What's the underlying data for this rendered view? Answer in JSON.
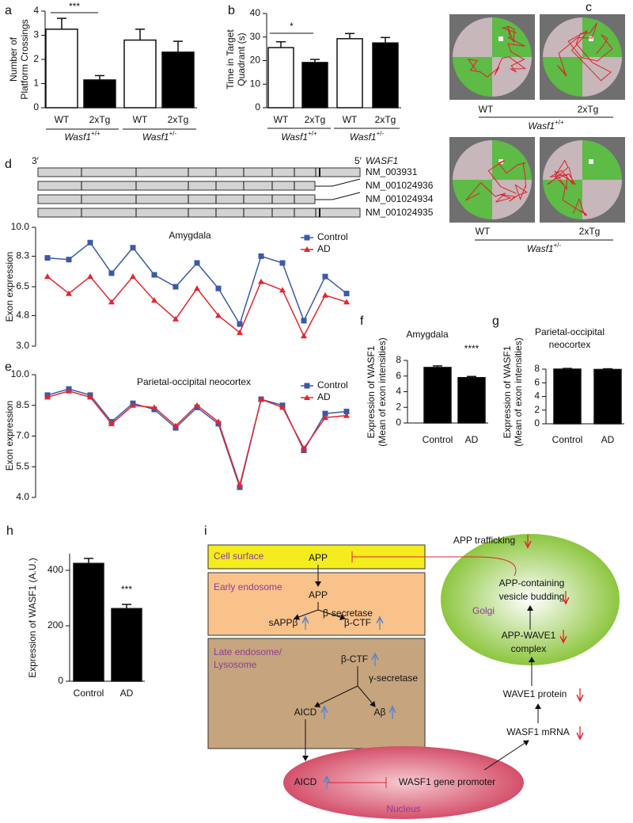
{
  "chart_data": [
    {
      "type": "bar",
      "panel": "a",
      "ylabel": [
        "Number of",
        "Platform Crossings"
      ],
      "categories": [
        "WT",
        "2xTg",
        "WT",
        "2xTg"
      ],
      "groups": [
        {
          "gene": "Wasf1",
          "genotype": "+/+"
        },
        {
          "gene": "Wasf1",
          "genotype": "+/-"
        }
      ],
      "values": [
        3.25,
        1.15,
        2.8,
        2.3
      ],
      "errors": [
        0.45,
        0.18,
        0.45,
        0.45
      ],
      "colors": [
        "#ffffff",
        "#000000",
        "#ffffff",
        "#000000"
      ],
      "ylim": [
        0,
        4
      ],
      "yticks": [
        0,
        1,
        2,
        3,
        4
      ],
      "significance": "***"
    },
    {
      "type": "bar",
      "panel": "b",
      "ylabel": [
        "Time in Target",
        "Quadrant (s)"
      ],
      "categories": [
        "WT",
        "2xTg",
        "WT",
        "2xTg"
      ],
      "groups": [
        {
          "gene": "Wasf1",
          "genotype": "+/+"
        },
        {
          "gene": "Wasf1",
          "genotype": "+/-"
        }
      ],
      "values": [
        25.5,
        19.2,
        29.3,
        27.5
      ],
      "errors": [
        2.5,
        1.3,
        2.2,
        2.3
      ],
      "colors": [
        "#ffffff",
        "#000000",
        "#ffffff",
        "#000000"
      ],
      "ylim": [
        0,
        40
      ],
      "yticks": [
        0,
        10,
        20,
        30,
        40
      ],
      "significance": "*"
    },
    {
      "type": "line",
      "panel": "d",
      "title": "Amygdala",
      "ylabel": "Exon expression",
      "ylim": [
        3,
        10
      ],
      "yticks": [
        {
          "value": 3,
          "label": "3.0"
        },
        4.8,
        6.5,
        8.3,
        {
          "value": 10,
          "label": "10.0"
        }
      ],
      "legend": "upper right",
      "series": [
        {
          "name": "Control",
          "color": "#3b5aa8",
          "marker": "square",
          "values": [
            8.2,
            8.1,
            9.1,
            7.3,
            8.8,
            7.2,
            6.5,
            7.9,
            6.4,
            4.3,
            8.3,
            7.9,
            4.5,
            7.1,
            6.1
          ]
        },
        {
          "name": "AD",
          "color": "#e3262e",
          "marker": "triangle",
          "values": [
            7.1,
            6.1,
            7.1,
            5.6,
            7.1,
            5.7,
            4.6,
            6.4,
            4.8,
            3.8,
            6.8,
            6.3,
            3.6,
            6.0,
            5.6
          ]
        }
      ]
    },
    {
      "type": "line",
      "panel": "e",
      "title": "Parietal-occipital neocortex",
      "ylabel": "Exon expression",
      "ylim": [
        4,
        10
      ],
      "yticks": [
        {
          "value": 4,
          "label": "4.0"
        },
        5.5,
        {
          "value": 7,
          "label": "7.0"
        },
        8.5,
        {
          "value": 10,
          "label": "10.0"
        }
      ],
      "legend": "upper right",
      "series": [
        {
          "name": "Control",
          "color": "#3b5aa8",
          "marker": "square",
          "values": [
            9.0,
            9.3,
            9.0,
            7.7,
            8.6,
            8.3,
            7.4,
            8.4,
            7.6,
            4.5,
            8.8,
            8.5,
            6.3,
            8.1,
            8.2
          ]
        },
        {
          "name": "AD",
          "color": "#e3262e",
          "marker": "triangle",
          "values": [
            8.9,
            9.2,
            8.9,
            7.6,
            8.5,
            8.4,
            7.5,
            8.5,
            7.7,
            4.6,
            8.8,
            8.4,
            6.4,
            7.9,
            8.0
          ]
        }
      ]
    },
    {
      "type": "bar",
      "panel": "f",
      "title": [
        "Amygdala"
      ],
      "ylabel": [
        "Expression of WASF1",
        "(Mean of exon intensities)"
      ],
      "categories": [
        "Control",
        "AD"
      ],
      "values": [
        7.1,
        5.8
      ],
      "errors": [
        0.2,
        0.15
      ],
      "colors": [
        "#000000",
        "#000000"
      ],
      "ylim": [
        0,
        8
      ],
      "yticks": [
        0,
        2,
        4,
        6,
        8
      ],
      "significance": "****"
    },
    {
      "type": "bar",
      "panel": "g",
      "title": [
        "Parietal-occipital",
        "neocortex"
      ],
      "ylabel": [
        "Expression of WASF1",
        "(Mean of exon intensities)"
      ],
      "categories": [
        "Control",
        "AD"
      ],
      "values": [
        8.0,
        7.95
      ],
      "errors": [
        0.1,
        0.1
      ],
      "colors": [
        "#000000",
        "#000000"
      ],
      "ylim": [
        0,
        8
      ],
      "yticks": [
        0,
        2,
        4,
        6,
        8
      ]
    },
    {
      "type": "bar",
      "panel": "h",
      "ylabel": [
        "Expression of WASF1 (A.U.)"
      ],
      "categories": [
        "Control",
        "AD"
      ],
      "values": [
        425,
        262
      ],
      "errors": [
        18,
        15
      ],
      "colors": [
        "#000000",
        "#000000"
      ],
      "ylim": [
        0,
        460
      ],
      "yticks": [
        0,
        200,
        400
      ],
      "significance": "***"
    }
  ],
  "maze": {
    "panel": "c",
    "rows": [
      {
        "trials": [
          "WT",
          "2xTg"
        ],
        "group": {
          "gene": "Wasf1",
          "genotype": "+/+"
        }
      },
      {
        "trials": [
          "WT",
          "2xTg"
        ],
        "group": {
          "gene": "Wasf1",
          "genotype": "+/-"
        }
      }
    ]
  },
  "transcripts": {
    "prime3": "3′",
    "prime5": "5′",
    "gene": "WASF1",
    "ids": [
      "NM_003931",
      "NM_001024936",
      "NM_001024934",
      "NM_001024935"
    ]
  },
  "diagram": {
    "panel": "i",
    "compartments": [
      "Cell surface",
      "Early endosome",
      "Late endosome/",
      "Lysosome",
      "Golgi",
      "Nucleus"
    ],
    "labels": [
      "APP",
      "APP trafficking",
      "APP",
      "β-secretase",
      "sAPPβ",
      "β-CTF",
      "β-CTF",
      "γ-secretase",
      "AICD",
      "Aβ",
      "APP-containing",
      "vesicle budding",
      "APP-WAVE1",
      "complex",
      "WAVE1 protein",
      "WASF1 mRNA",
      "AICD",
      "WASF1 gene promoter"
    ]
  }
}
